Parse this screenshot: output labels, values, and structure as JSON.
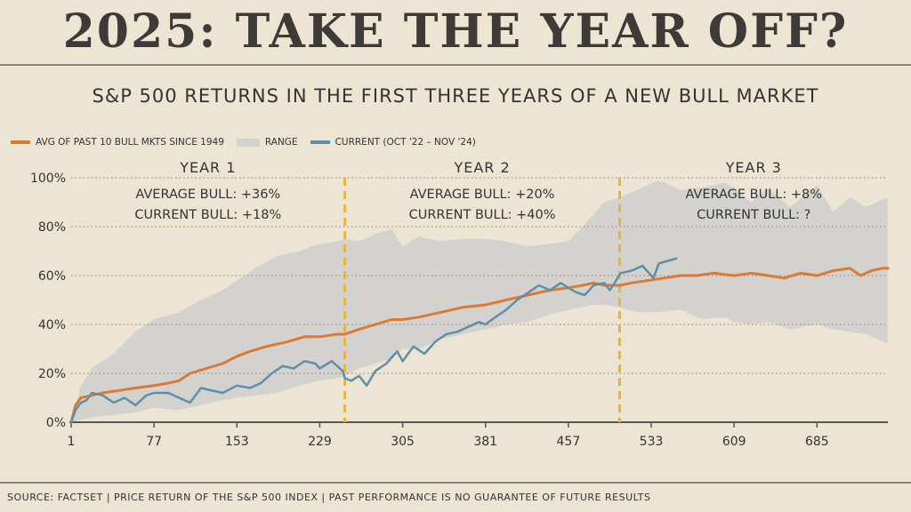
{
  "header": {
    "title": "2025: TAKE THE YEAR OFF?",
    "subtitle": "S&P 500 RETURNS IN THE FIRST THREE YEARS OF A NEW BULL MARKET"
  },
  "legend": {
    "avg": "AVG OF PAST 10 BULL MKTS SINCE 1949",
    "range": "RANGE",
    "current": "CURRENT (OCT '22 – NOV '24)"
  },
  "colors": {
    "avg": "#d97a35",
    "range": "#d3d2cf",
    "current": "#5d90a8",
    "divider": "#e8b538",
    "background": "#ede5d3"
  },
  "years": [
    {
      "label": "YEAR 1",
      "avg_text": "AVERAGE BULL: +36%",
      "cur_text": "CURRENT BULL: +18%"
    },
    {
      "label": "YEAR 2",
      "avg_text": "AVERAGE BULL: +20%",
      "cur_text": "CURRENT BULL: +40%"
    },
    {
      "label": "YEAR 3",
      "avg_text": "AVERAGE BULL: +8%",
      "cur_text": "CURRENT BULL: ?"
    }
  ],
  "chart_data": {
    "type": "line",
    "xlabel": "",
    "ylabel": "",
    "xlim": [
      1,
      750
    ],
    "ylim": [
      0,
      100
    ],
    "x_ticks": [
      "1",
      "77",
      "153",
      "229",
      "305",
      "381",
      "457",
      "533",
      "609",
      "685"
    ],
    "y_ticks": [
      "0%",
      "20%",
      "40%",
      "60%",
      "80%",
      "100%"
    ],
    "dividers": [
      252,
      504
    ],
    "grid": "horizontal dotted",
    "legend_position": "top-left",
    "series": [
      {
        "name": "AVG OF PAST 10 BULL MKTS SINCE 1949",
        "x": [
          1,
          5,
          10,
          20,
          30,
          45,
          60,
          77,
          90,
          100,
          110,
          125,
          140,
          153,
          165,
          180,
          200,
          215,
          229,
          245,
          252,
          265,
          280,
          295,
          305,
          320,
          340,
          360,
          381,
          400,
          420,
          440,
          457,
          470,
          480,
          490,
          504,
          515,
          530,
          545,
          560,
          575,
          590,
          609,
          625,
          640,
          655,
          670,
          685,
          700,
          715,
          725,
          735,
          745,
          750
        ],
        "y": [
          0,
          7,
          10,
          11,
          12,
          13,
          14,
          15,
          16,
          17,
          20,
          22,
          24,
          27,
          29,
          31,
          33,
          35,
          35,
          36,
          36,
          38,
          40,
          42,
          42,
          43,
          45,
          47,
          48,
          50,
          52,
          54,
          55,
          56,
          57,
          56,
          56,
          57,
          58,
          59,
          60,
          60,
          61,
          60,
          61,
          60,
          59,
          61,
          60,
          62,
          63,
          60,
          62,
          63,
          63
        ]
      },
      {
        "name": "RANGE",
        "x": [
          1,
          10,
          20,
          40,
          60,
          77,
          100,
          120,
          140,
          153,
          170,
          190,
          210,
          229,
          245,
          252,
          265,
          280,
          295,
          305,
          320,
          340,
          360,
          381,
          400,
          420,
          440,
          457,
          470,
          480,
          490,
          504,
          520,
          540,
          560,
          580,
          600,
          609,
          625,
          640,
          660,
          685,
          700,
          715,
          730,
          740,
          750
        ],
        "upper": [
          0,
          15,
          22,
          28,
          37,
          42,
          45,
          50,
          54,
          58,
          63,
          68,
          70,
          73,
          74,
          75,
          74,
          77,
          79,
          72,
          76,
          74,
          75,
          75,
          74,
          72,
          73,
          74,
          80,
          85,
          90,
          92,
          95,
          99,
          95,
          96,
          98,
          96,
          90,
          96,
          88,
          97,
          86,
          92,
          88,
          90,
          92
        ],
        "lower": [
          0,
          1,
          2,
          3,
          4,
          6,
          5,
          7,
          9,
          10,
          11,
          12,
          15,
          17,
          18,
          19,
          22,
          24,
          26,
          30,
          30,
          34,
          36,
          38,
          40,
          41,
          44,
          46,
          47,
          48,
          48,
          47,
          45,
          45,
          46,
          42,
          43,
          41,
          40,
          41,
          38,
          40,
          38,
          37,
          36,
          34,
          32
        ]
      },
      {
        "name": "CURRENT (OCT '22 – NOV '24)",
        "x": [
          1,
          5,
          10,
          15,
          20,
          30,
          40,
          50,
          60,
          70,
          77,
          90,
          100,
          110,
          120,
          130,
          140,
          153,
          165,
          175,
          185,
          195,
          205,
          215,
          225,
          229,
          240,
          250,
          252,
          258,
          265,
          272,
          280,
          290,
          300,
          305,
          315,
          325,
          335,
          345,
          355,
          365,
          375,
          381,
          390,
          400,
          410,
          420,
          430,
          440,
          450,
          457,
          465,
          472,
          480,
          490,
          495,
          505,
          515,
          525,
          535,
          540,
          548,
          556
        ],
        "y": [
          0,
          5,
          8,
          9,
          12,
          11,
          8,
          10,
          7,
          11,
          12,
          12,
          10,
          8,
          14,
          13,
          12,
          15,
          14,
          16,
          20,
          23,
          22,
          25,
          24,
          22,
          25,
          21,
          18,
          17,
          19,
          15,
          21,
          24,
          29,
          25,
          31,
          28,
          33,
          36,
          37,
          39,
          41,
          40,
          43,
          46,
          50,
          53,
          56,
          54,
          57,
          55,
          53,
          52,
          56,
          57,
          54,
          61,
          62,
          64,
          59,
          65,
          66,
          67
        ]
      }
    ]
  },
  "source": "SOURCE: FACTSET | PRICE RETURN OF THE S&P 500 INDEX | PAST PERFORMANCE IS NO GUARANTEE OF FUTURE RESULTS"
}
